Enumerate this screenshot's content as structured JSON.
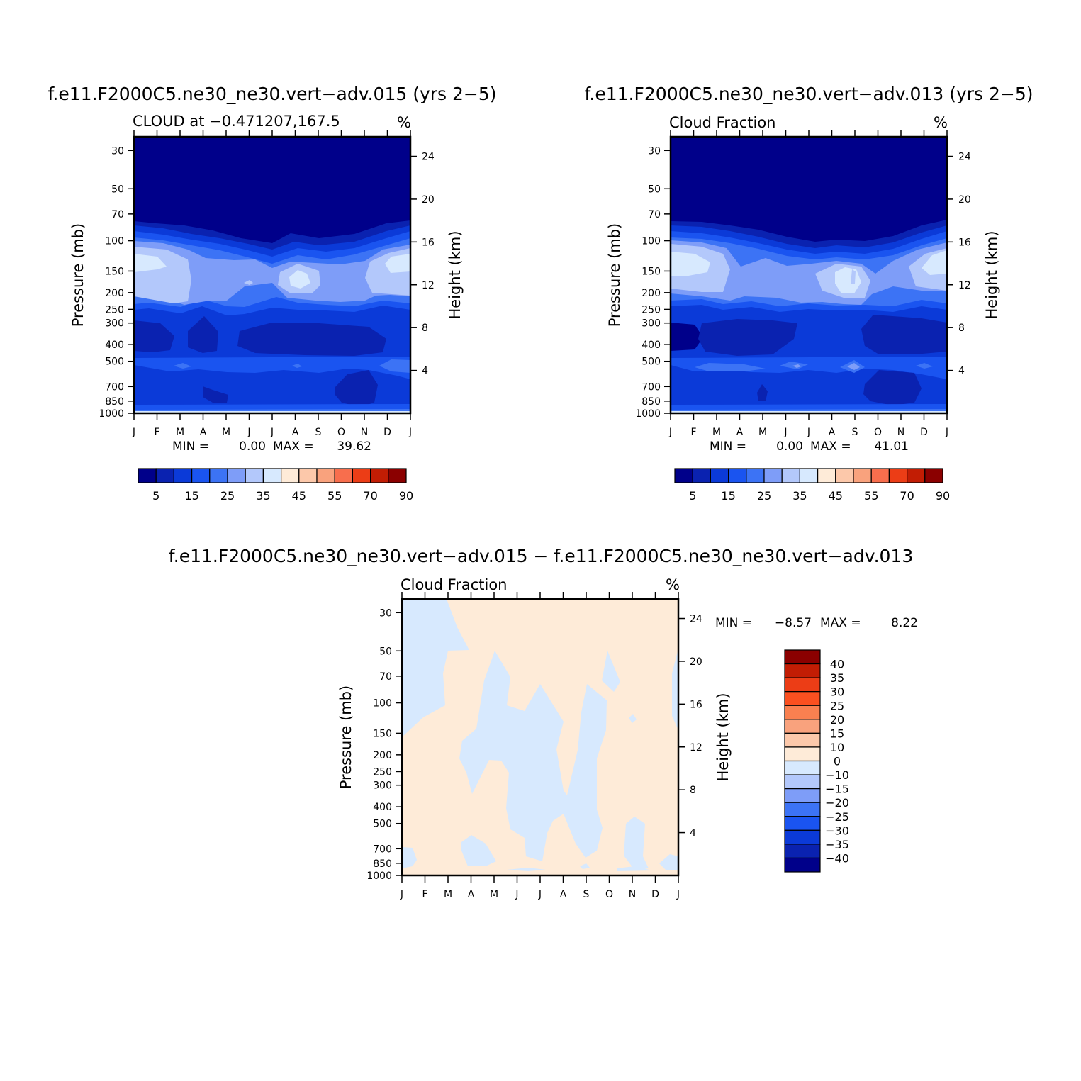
{
  "panels": [
    {
      "title": "f.e11.F2000C5.ne30_ne30.vert-adv.015 (yrs 2-5)",
      "left_label": "CLOUD at -0.471207,167.5",
      "units": "%",
      "min_label": "MIN =",
      "min_value": "0.00",
      "max_label": "MAX =",
      "max_value": "39.62"
    },
    {
      "title": "f.e11.F2000C5.ne30_ne30.vert-adv.013 (yrs 2-5)",
      "left_label": "Cloud Fraction",
      "units": "%",
      "min_label": "MIN =",
      "min_value": "0.00",
      "max_label": "MAX =",
      "max_value": "41.01"
    },
    {
      "title": "f.e11.F2000C5.ne30_ne30.vert-adv.015 - f.e11.F2000C5.ne30_ne30.vert-adv.013",
      "left_label": "Cloud Fraction",
      "units": "%",
      "min_label": "MIN =",
      "min_value": "-8.57",
      "max_label": "MAX =",
      "max_value": "8.22"
    }
  ],
  "chart_data": [
    {
      "type": "heatmap",
      "title": "f.e11.F2000C5.ne30_ne30.vert-adv.015 (yrs 2-5)",
      "xlabel": "",
      "ylabel": "Pressure (mb)",
      "ylabel_right": "Height (km)",
      "x_ticks": [
        "J",
        "F",
        "M",
        "A",
        "M",
        "J",
        "J",
        "A",
        "S",
        "O",
        "N",
        "D",
        "J"
      ],
      "y_ticks": [
        30,
        50,
        70,
        100,
        150,
        200,
        250,
        300,
        400,
        500,
        700,
        850,
        1000
      ],
      "y_ticks_right": [
        4,
        8,
        12,
        16,
        20,
        24
      ],
      "ylim": [
        1000,
        25
      ],
      "y_scale": "log",
      "colorbar_labels": [
        "5",
        "15",
        "25",
        "35",
        "45",
        "55",
        "70",
        "90"
      ],
      "colorbar_colors": [
        "#00008a",
        "#0a22b0",
        "#0b3ad8",
        "#1a54f0",
        "#3c73f5",
        "#7e9df8",
        "#b3c8fb",
        "#d7e9fe",
        "#feebd8",
        "#fcc8aa",
        "#f9a27d",
        "#f86e4d",
        "#ec3d16",
        "#c21d04",
        "#8b0000"
      ],
      "min": 0.0,
      "max": 39.62
    },
    {
      "type": "heatmap",
      "title": "f.e11.F2000C5.ne30_ne30.vert-adv.013 (yrs 2-5)",
      "xlabel": "",
      "ylabel": "Pressure (mb)",
      "ylabel_right": "Height (km)",
      "x_ticks": [
        "J",
        "F",
        "M",
        "A",
        "M",
        "J",
        "J",
        "A",
        "S",
        "O",
        "N",
        "D",
        "J"
      ],
      "y_ticks": [
        30,
        50,
        70,
        100,
        150,
        200,
        250,
        300,
        400,
        500,
        700,
        850,
        1000
      ],
      "y_ticks_right": [
        4,
        8,
        12,
        16,
        20,
        24
      ],
      "ylim": [
        1000,
        25
      ],
      "y_scale": "log",
      "colorbar_labels": [
        "5",
        "15",
        "25",
        "35",
        "45",
        "55",
        "70",
        "90"
      ],
      "colorbar_colors": [
        "#00008a",
        "#0a22b0",
        "#0b3ad8",
        "#1a54f0",
        "#3c73f5",
        "#7e9df8",
        "#b3c8fb",
        "#d7e9fe",
        "#feebd8",
        "#fcc8aa",
        "#f9a27d",
        "#f86e4d",
        "#ec3d16",
        "#c21d04",
        "#8b0000"
      ],
      "min": 0.0,
      "max": 41.01
    },
    {
      "type": "heatmap",
      "title": "f.e11.F2000C5.ne30_ne30.vert-adv.015 - f.e11.F2000C5.ne30_ne30.vert-adv.013",
      "xlabel": "",
      "ylabel": "Pressure (mb)",
      "ylabel_right": "Height (km)",
      "x_ticks": [
        "J",
        "F",
        "M",
        "A",
        "M",
        "J",
        "J",
        "A",
        "S",
        "O",
        "N",
        "D",
        "J"
      ],
      "y_ticks": [
        30,
        50,
        70,
        100,
        150,
        200,
        250,
        300,
        400,
        500,
        700,
        850,
        1000
      ],
      "y_ticks_right": [
        4,
        8,
        12,
        16,
        20,
        24
      ],
      "ylim": [
        1000,
        25
      ],
      "y_scale": "log",
      "colorbar_labels": [
        "40",
        "35",
        "30",
        "25",
        "20",
        "15",
        "10",
        "0",
        "-10",
        "-15",
        "-20",
        "-25",
        "-30",
        "-35",
        "-40"
      ],
      "colorbar_colors": [
        "#8b0000",
        "#c21d04",
        "#ec3d16",
        "#fb5020",
        "#f98050",
        "#f9a27d",
        "#fcc8aa",
        "#feebd8",
        "#d7e9fe",
        "#b3c8fb",
        "#7e9df8",
        "#3c73f5",
        "#1a54f0",
        "#0b3ad8",
        "#0a22b0",
        "#00008a"
      ],
      "min": -8.57,
      "max": 8.22
    }
  ]
}
